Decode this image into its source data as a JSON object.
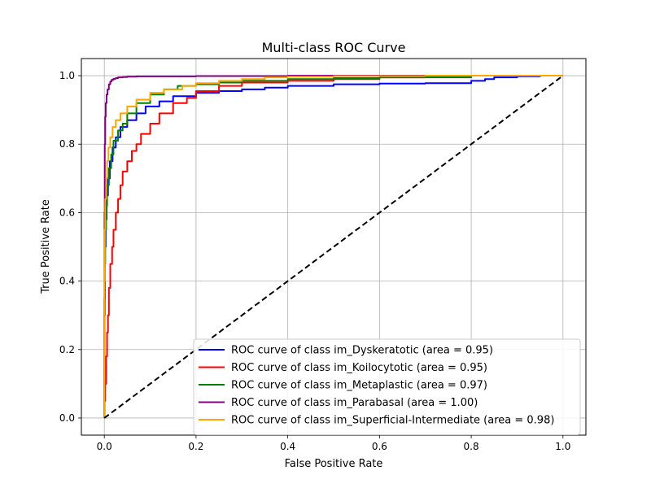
{
  "chart_data": {
    "type": "line",
    "title": "Multi-class ROC Curve",
    "xlabel": "False Positive Rate",
    "ylabel": "True Positive Rate",
    "xlim": [
      -0.05,
      1.05
    ],
    "ylim": [
      -0.05,
      1.05
    ],
    "xticks": [
      0.0,
      0.2,
      0.4,
      0.6,
      0.8,
      1.0
    ],
    "yticks": [
      0.0,
      0.2,
      0.4,
      0.6,
      0.8,
      1.0
    ],
    "xtick_labels": [
      "0.0",
      "0.2",
      "0.4",
      "0.6",
      "0.8",
      "1.0"
    ],
    "ytick_labels": [
      "0.0",
      "0.2",
      "0.4",
      "0.6",
      "0.8",
      "1.0"
    ],
    "grid": true,
    "legend_position": "lower-right",
    "series": [
      {
        "name": "ROC curve of class im_Dyskeratotic (area = 0.95)",
        "color": "#0000ff",
        "x": [
          0,
          0.001,
          0.003,
          0.005,
          0.008,
          0.012,
          0.018,
          0.025,
          0.035,
          0.05,
          0.07,
          0.09,
          0.12,
          0.15,
          0.2,
          0.25,
          0.3,
          0.35,
          0.4,
          0.5,
          0.6,
          0.7,
          0.8,
          0.83,
          0.85,
          0.9,
          0.95,
          1.0
        ],
        "y": [
          0,
          0.35,
          0.5,
          0.58,
          0.65,
          0.7,
          0.75,
          0.79,
          0.82,
          0.85,
          0.87,
          0.89,
          0.91,
          0.925,
          0.94,
          0.95,
          0.955,
          0.96,
          0.965,
          0.97,
          0.975,
          0.977,
          0.978,
          0.985,
          0.99,
          0.995,
          0.998,
          1.0
        ]
      },
      {
        "name": "ROC curve of class im_Koilocytotic (area = 0.95)",
        "color": "#ff0000",
        "x": [
          0,
          0.002,
          0.004,
          0.006,
          0.008,
          0.01,
          0.013,
          0.017,
          0.02,
          0.025,
          0.03,
          0.035,
          0.04,
          0.05,
          0.06,
          0.07,
          0.08,
          0.1,
          0.12,
          0.15,
          0.18,
          0.2,
          0.25,
          0.3,
          0.4,
          0.5,
          0.6,
          0.8,
          1.0
        ],
        "y": [
          0,
          0.05,
          0.1,
          0.18,
          0.25,
          0.3,
          0.38,
          0.45,
          0.5,
          0.55,
          0.6,
          0.64,
          0.68,
          0.72,
          0.75,
          0.78,
          0.8,
          0.83,
          0.86,
          0.89,
          0.92,
          0.935,
          0.955,
          0.97,
          0.98,
          0.985,
          0.99,
          0.995,
          1.0
        ]
      },
      {
        "name": "ROC curve of class im_Metaplastic (area = 0.97)",
        "color": "#008000",
        "x": [
          0,
          0.001,
          0.002,
          0.004,
          0.006,
          0.01,
          0.015,
          0.02,
          0.03,
          0.04,
          0.05,
          0.07,
          0.1,
          0.13,
          0.16,
          0.2,
          0.25,
          0.3,
          0.4,
          0.5,
          0.6,
          0.7,
          0.8,
          1.0
        ],
        "y": [
          0,
          0.3,
          0.45,
          0.55,
          0.62,
          0.68,
          0.73,
          0.77,
          0.81,
          0.84,
          0.86,
          0.89,
          0.92,
          0.945,
          0.96,
          0.97,
          0.975,
          0.98,
          0.985,
          0.99,
          0.993,
          0.995,
          0.997,
          1.0
        ]
      },
      {
        "name": "ROC curve of class im_Parabasal (area = 1.00)",
        "color": "#800080",
        "x": [
          0,
          0.0005,
          0.001,
          0.002,
          0.003,
          0.005,
          0.007,
          0.01,
          0.013,
          0.016,
          0.02,
          0.025,
          0.03,
          0.04,
          0.05,
          0.07,
          0.1,
          0.2,
          0.4,
          0.6,
          1.0
        ],
        "y": [
          0,
          0.3,
          0.6,
          0.8,
          0.88,
          0.92,
          0.945,
          0.96,
          0.975,
          0.983,
          0.988,
          0.991,
          0.993,
          0.995,
          0.996,
          0.997,
          0.998,
          0.998,
          0.999,
          1.0,
          1.0
        ]
      },
      {
        "name": "ROC curve of class im_Superficial-Intermediate (area = 0.98)",
        "color": "#ffa500",
        "x": [
          0,
          0.001,
          0.002,
          0.004,
          0.006,
          0.009,
          0.013,
          0.018,
          0.025,
          0.035,
          0.05,
          0.07,
          0.1,
          0.13,
          0.17,
          0.2,
          0.25,
          0.3,
          0.35,
          0.4,
          0.5,
          0.7,
          1.0
        ],
        "y": [
          0,
          0.4,
          0.55,
          0.64,
          0.7,
          0.75,
          0.79,
          0.82,
          0.85,
          0.87,
          0.89,
          0.91,
          0.93,
          0.95,
          0.96,
          0.97,
          0.978,
          0.985,
          0.99,
          0.995,
          0.997,
          0.999,
          1.0
        ]
      },
      {
        "name": "",
        "color": "#000000",
        "dashed": true,
        "x": [
          0,
          1
        ],
        "y": [
          0,
          1
        ]
      }
    ]
  }
}
